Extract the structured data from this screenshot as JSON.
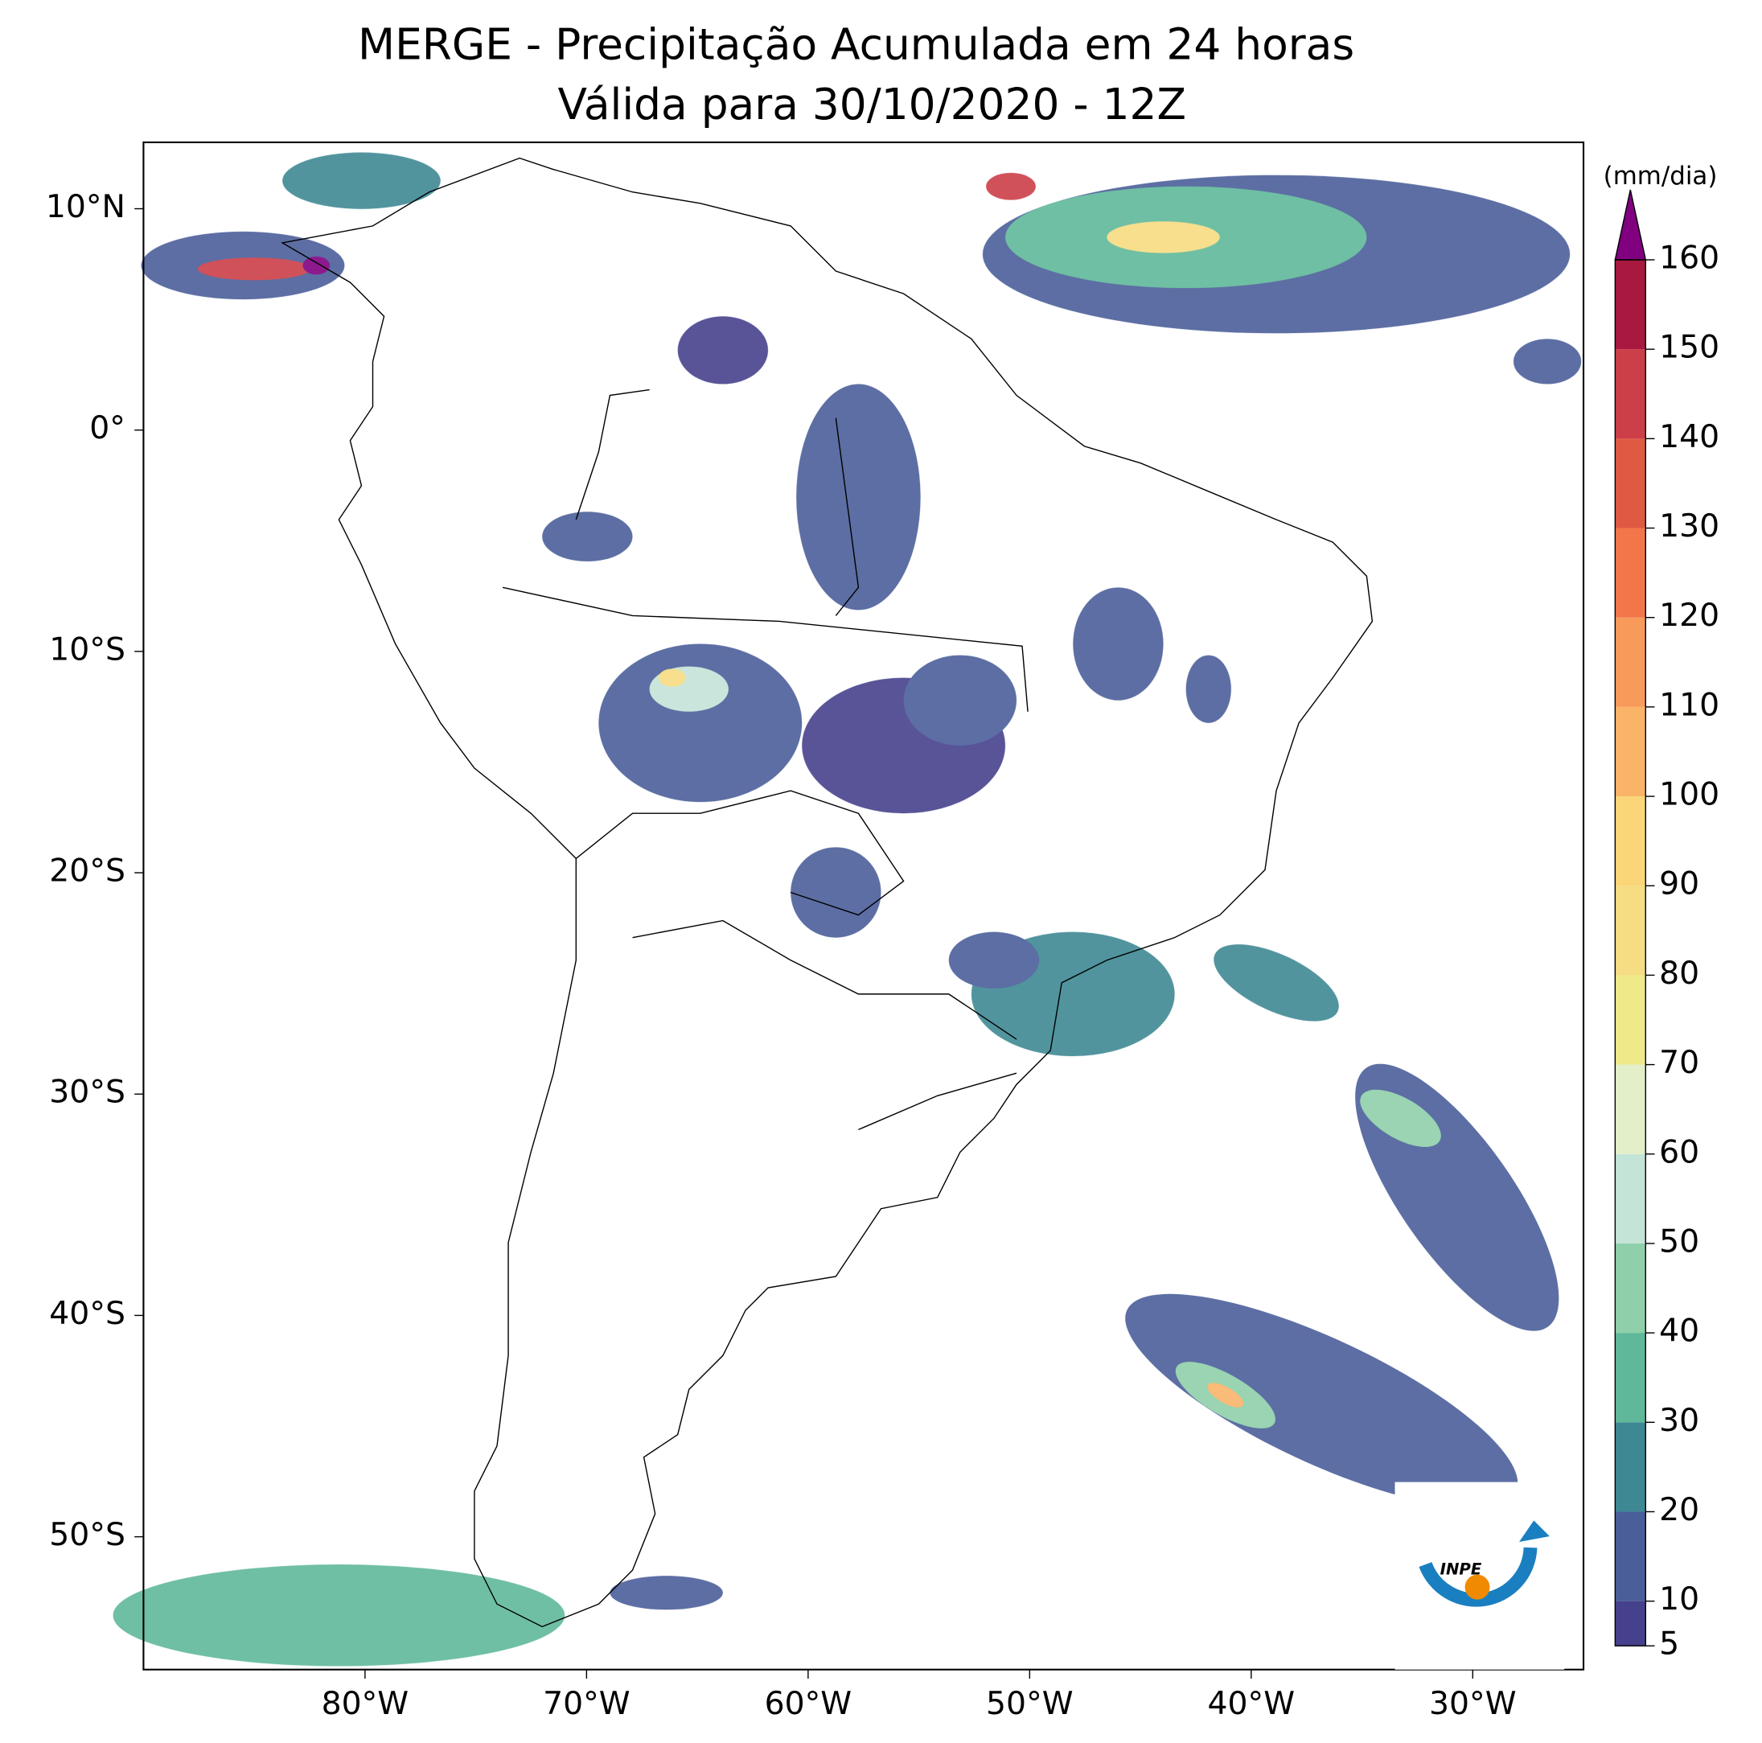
{
  "chart_data": {
    "type": "map",
    "title": "MERGE - Precipitação Acumulada em 24 horas",
    "subtitle": "Válida para 30/10/2020 - 12Z",
    "xlim": [
      -90,
      -25
    ],
    "ylim": [
      -56,
      13
    ],
    "xticks": [
      {
        "value": -80,
        "label": "80°W"
      },
      {
        "value": -70,
        "label": "70°W"
      },
      {
        "value": -60,
        "label": "60°W"
      },
      {
        "value": -50,
        "label": "50°W"
      },
      {
        "value": -40,
        "label": "40°W"
      },
      {
        "value": -30,
        "label": "30°W"
      }
    ],
    "yticks": [
      {
        "value": 10,
        "label": "10°N"
      },
      {
        "value": 0,
        "label": "0°"
      },
      {
        "value": -10,
        "label": "10°S"
      },
      {
        "value": -20,
        "label": "20°S"
      },
      {
        "value": -30,
        "label": "30°S"
      },
      {
        "value": -40,
        "label": "40°S"
      },
      {
        "value": -50,
        "label": "50°S"
      }
    ],
    "colorbar": {
      "label": "(mm/dia)",
      "lim": [
        5,
        160
      ],
      "ticks": [
        5,
        10,
        20,
        30,
        40,
        50,
        60,
        70,
        80,
        90,
        100,
        110,
        120,
        130,
        140,
        150,
        160
      ],
      "colors": [
        "#46418c",
        "#4a5e99",
        "#3e8894",
        "#5fb89a",
        "#8fd0aa",
        "#c4e4d8",
        "#e3efc9",
        "#efe98a",
        "#f6dc82",
        "#fbd678",
        "#f9b468",
        "#f89a5a",
        "#f2764a",
        "#e05a43",
        "#cc3e48",
        "#a8193f"
      ],
      "extend_color": "#800080"
    },
    "logo_text": "INPE"
  }
}
